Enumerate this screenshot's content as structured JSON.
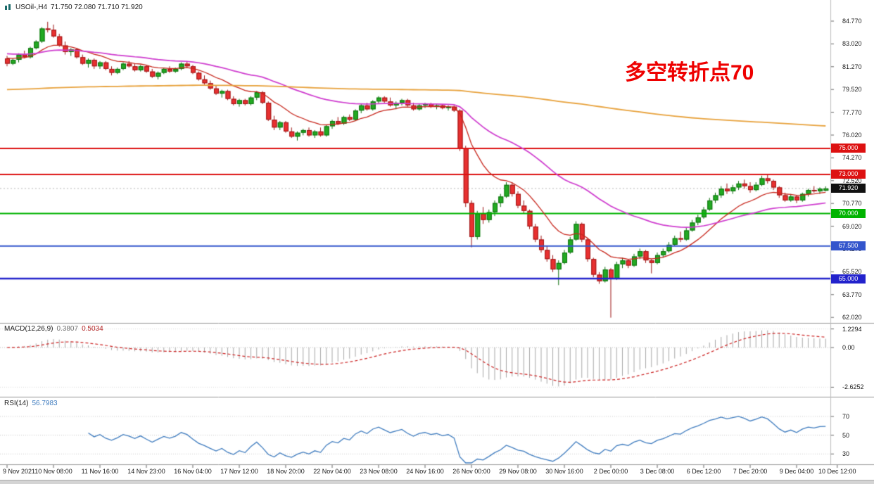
{
  "header": {
    "symbol_period": "USOil-,H4",
    "ohlc_text": "71.750 72.080 71.710 71.920"
  },
  "main_chart": {
    "annotation": "多空转折点70",
    "annotation_color": "#ee0000",
    "price_axis_labels": [
      "84.770",
      "83.020",
      "81.270",
      "79.520",
      "77.770",
      "76.020",
      "74.270",
      "72.520",
      "70.770",
      "69.020",
      "67.270",
      "65.520",
      "63.770",
      "62.020"
    ],
    "levels": [
      {
        "label": "75.000",
        "value": 75.0,
        "color": "#dd1111",
        "width": 2
      },
      {
        "label": "73.000",
        "value": 73.0,
        "color": "#dd1111",
        "width": 2
      },
      {
        "label": "70.000",
        "value": 70.0,
        "color": "#00b300",
        "width": 2
      },
      {
        "label": "67.500",
        "value": 67.5,
        "color": "#3355cc",
        "width": 2
      },
      {
        "label": "65.000",
        "value": 65.0,
        "color": "#2222cc",
        "width": 2.5
      }
    ],
    "current_price": {
      "label": "71.920",
      "value": 71.92,
      "color": "#111111"
    }
  },
  "macd": {
    "name": "MACD(12,26,9)",
    "main_value": "0.3807",
    "signal_value": "0.5034",
    "axis_labels": [
      "1.2294",
      "0.00",
      "-2.6252"
    ],
    "fast": 12,
    "slow": 26,
    "signal": 9
  },
  "rsi": {
    "name": "RSI(14)",
    "value": "56.7983",
    "period": 14,
    "axis_labels": [
      "70",
      "50",
      "30"
    ]
  },
  "time_axis": {
    "labels": [
      {
        "label": "9 Nov 2021",
        "bar": 0
      },
      {
        "label": "10 Nov 08:00",
        "bar": 8
      },
      {
        "label": "11 Nov 16:00",
        "bar": 16
      },
      {
        "label": "14 Nov 23:00",
        "bar": 24
      },
      {
        "label": "16 Nov 04:00",
        "bar": 32
      },
      {
        "label": "17 Nov 12:00",
        "bar": 40
      },
      {
        "label": "18 Nov 20:00",
        "bar": 48
      },
      {
        "label": "22 Nov 04:00",
        "bar": 56
      },
      {
        "label": "23 Nov 08:00",
        "bar": 64
      },
      {
        "label": "24 Nov 16:00",
        "bar": 72
      },
      {
        "label": "26 Nov 00:00",
        "bar": 80
      },
      {
        "label": "29 Nov 08:00",
        "bar": 88
      },
      {
        "label": "30 Nov 16:00",
        "bar": 96
      },
      {
        "label": "2 Dec 00:00",
        "bar": 104
      },
      {
        "label": "3 Dec 08:00",
        "bar": 112
      },
      {
        "label": "6 Dec 12:00",
        "bar": 120
      },
      {
        "label": "7 Dec 20:00",
        "bar": 128
      },
      {
        "label": "9 Dec 04:00",
        "bar": 136
      },
      {
        "label": "10 Dec 12:00",
        "bar": 143
      }
    ]
  },
  "chart_data": {
    "type": "candlestick",
    "title": "USOil-,H4",
    "symbol": "USOil",
    "timeframe": "H4",
    "ohlc_current": {
      "open": 71.75,
      "high": 72.08,
      "low": 71.71,
      "close": 71.92
    },
    "price_range": [
      62.02,
      84.77
    ],
    "colors": {
      "bull": "#22aa22",
      "bull_border": "#0c6e0c",
      "bear": "#e83030",
      "bear_border": "#9c1515",
      "macd_hist": "#a8a8a8",
      "macd_signal": "#cc2222",
      "rsi_line": "#3f7cbf",
      "bid_line": "#b5b5b5"
    },
    "moving_averages": [
      {
        "name": "ma-fast",
        "period": 12,
        "seed": 82.0,
        "color": "#c8281e",
        "width": 1.3
      },
      {
        "name": "ma-medium",
        "period": 40,
        "seed": 82.3,
        "color": "#cf3ccf",
        "width": 1.7
      },
      {
        "name": "ma-slow",
        "period": 400,
        "seed": 79.5,
        "color": "#e8a23c",
        "width": 1.8
      }
    ],
    "candles": [
      [
        81.9,
        82.1,
        81.3,
        81.5
      ],
      [
        81.5,
        81.9,
        81.4,
        81.8
      ],
      [
        81.8,
        82.3,
        81.6,
        82.2
      ],
      [
        82.2,
        82.5,
        81.9,
        82.0
      ],
      [
        82.0,
        82.8,
        81.9,
        82.7
      ],
      [
        82.7,
        83.3,
        82.6,
        83.2
      ],
      [
        83.2,
        84.3,
        83.1,
        84.2
      ],
      [
        84.2,
        84.72,
        83.9,
        84.1
      ],
      [
        84.1,
        84.5,
        83.5,
        83.6
      ],
      [
        83.6,
        83.8,
        82.8,
        82.9
      ],
      [
        82.9,
        83.2,
        82.2,
        82.4
      ],
      [
        82.4,
        82.7,
        82.1,
        82.6
      ],
      [
        82.6,
        82.7,
        81.9,
        82.0
      ],
      [
        82.0,
        82.2,
        81.4,
        81.5
      ],
      [
        81.5,
        81.9,
        81.2,
        81.8
      ],
      [
        81.8,
        81.9,
        81.1,
        81.3
      ],
      [
        81.3,
        81.7,
        81.1,
        81.6
      ],
      [
        81.6,
        81.7,
        81.0,
        81.1
      ],
      [
        81.1,
        81.3,
        80.6,
        80.8
      ],
      [
        80.8,
        81.2,
        80.7,
        81.1
      ],
      [
        81.1,
        81.6,
        81.0,
        81.5
      ],
      [
        81.5,
        81.7,
        81.2,
        81.3
      ],
      [
        81.3,
        81.5,
        80.9,
        81.0
      ],
      [
        81.0,
        81.4,
        80.9,
        81.3
      ],
      [
        81.3,
        81.4,
        80.8,
        80.9
      ],
      [
        80.9,
        81.1,
        80.4,
        80.5
      ],
      [
        80.5,
        80.9,
        80.3,
        80.8
      ],
      [
        80.8,
        81.2,
        80.7,
        81.1
      ],
      [
        81.1,
        81.3,
        80.8,
        80.9
      ],
      [
        80.9,
        81.2,
        80.8,
        81.1
      ],
      [
        81.1,
        81.6,
        81.0,
        81.5
      ],
      [
        81.5,
        81.7,
        81.2,
        81.3
      ],
      [
        81.3,
        81.4,
        80.7,
        80.8
      ],
      [
        80.8,
        80.9,
        80.2,
        80.3
      ],
      [
        80.3,
        80.6,
        79.9,
        80.0
      ],
      [
        80.0,
        80.2,
        79.5,
        79.6
      ],
      [
        79.6,
        79.8,
        79.1,
        79.2
      ],
      [
        79.2,
        79.5,
        78.9,
        79.4
      ],
      [
        79.4,
        79.5,
        78.7,
        78.8
      ],
      [
        78.8,
        79.0,
        78.3,
        78.4
      ],
      [
        78.4,
        78.8,
        78.2,
        78.7
      ],
      [
        78.7,
        78.8,
        78.3,
        78.4
      ],
      [
        78.4,
        79.0,
        78.3,
        78.9
      ],
      [
        78.9,
        79.4,
        78.7,
        79.3
      ],
      [
        79.3,
        79.4,
        78.4,
        78.5
      ],
      [
        78.5,
        78.6,
        77.1,
        77.2
      ],
      [
        77.2,
        77.5,
        76.4,
        76.6
      ],
      [
        76.6,
        77.1,
        76.4,
        77.0
      ],
      [
        77.0,
        77.1,
        76.2,
        76.3
      ],
      [
        76.3,
        76.6,
        75.8,
        75.9
      ],
      [
        75.9,
        76.3,
        75.6,
        76.2
      ],
      [
        76.2,
        76.5,
        76.0,
        76.4
      ],
      [
        76.4,
        76.6,
        75.9,
        76.0
      ],
      [
        76.0,
        76.4,
        75.8,
        76.3
      ],
      [
        76.3,
        76.6,
        75.9,
        76.0
      ],
      [
        76.0,
        76.8,
        75.9,
        76.7
      ],
      [
        76.7,
        77.2,
        76.5,
        77.1
      ],
      [
        77.1,
        77.4,
        76.8,
        76.9
      ],
      [
        76.9,
        77.5,
        76.8,
        77.4
      ],
      [
        77.4,
        77.6,
        77.1,
        77.2
      ],
      [
        77.2,
        78.0,
        77.1,
        77.9
      ],
      [
        77.9,
        78.4,
        77.7,
        78.3
      ],
      [
        78.3,
        78.5,
        77.9,
        78.0
      ],
      [
        78.0,
        78.7,
        77.9,
        78.6
      ],
      [
        78.6,
        79.0,
        78.4,
        78.9
      ],
      [
        78.9,
        79.0,
        78.5,
        78.6
      ],
      [
        78.6,
        78.9,
        78.2,
        78.3
      ],
      [
        78.3,
        78.6,
        78.0,
        78.5
      ],
      [
        78.5,
        78.8,
        78.3,
        78.7
      ],
      [
        78.7,
        78.8,
        78.2,
        78.3
      ],
      [
        78.3,
        78.5,
        77.9,
        78.0
      ],
      [
        78.0,
        78.4,
        77.9,
        78.3
      ],
      [
        78.3,
        78.5,
        78.1,
        78.4
      ],
      [
        78.4,
        78.5,
        78.1,
        78.2
      ],
      [
        78.2,
        78.4,
        78.0,
        78.3
      ],
      [
        78.3,
        78.4,
        78.0,
        78.1
      ],
      [
        78.1,
        78.3,
        77.9,
        78.2
      ],
      [
        78.2,
        78.3,
        77.8,
        77.9
      ],
      [
        77.9,
        78.0,
        74.8,
        75.0
      ],
      [
        75.0,
        75.2,
        70.5,
        70.8
      ],
      [
        70.8,
        71.0,
        67.4,
        68.2
      ],
      [
        68.2,
        70.2,
        68.0,
        70.0
      ],
      [
        70.0,
        70.5,
        69.2,
        69.5
      ],
      [
        69.5,
        70.3,
        69.3,
        70.1
      ],
      [
        70.1,
        71.0,
        69.8,
        70.8
      ],
      [
        70.8,
        71.5,
        70.5,
        71.3
      ],
      [
        71.3,
        72.4,
        71.2,
        72.2
      ],
      [
        72.2,
        72.4,
        71.3,
        71.5
      ],
      [
        71.5,
        71.7,
        70.4,
        70.6
      ],
      [
        70.6,
        71.0,
        70.0,
        70.2
      ],
      [
        70.2,
        70.3,
        68.8,
        69.0
      ],
      [
        69.0,
        69.2,
        67.8,
        68.0
      ],
      [
        68.0,
        68.3,
        67.0,
        67.2
      ],
      [
        67.2,
        67.5,
        66.3,
        66.5
      ],
      [
        66.5,
        66.8,
        65.5,
        65.7
      ],
      [
        65.7,
        66.4,
        64.5,
        66.2
      ],
      [
        66.2,
        67.2,
        66.1,
        67.0
      ],
      [
        67.0,
        68.2,
        66.9,
        68.0
      ],
      [
        68.0,
        69.4,
        67.9,
        69.2
      ],
      [
        69.2,
        69.3,
        67.8,
        68.0
      ],
      [
        68.0,
        68.1,
        66.3,
        66.5
      ],
      [
        66.5,
        66.6,
        65.1,
        65.3
      ],
      [
        65.3,
        65.5,
        64.6,
        64.8
      ],
      [
        64.8,
        65.9,
        64.7,
        65.7
      ],
      [
        65.7,
        65.8,
        62.0,
        65.0
      ],
      [
        65.0,
        66.3,
        64.9,
        66.1
      ],
      [
        66.1,
        66.6,
        65.8,
        66.4
      ],
      [
        66.4,
        66.5,
        65.8,
        66.0
      ],
      [
        66.0,
        66.9,
        65.9,
        66.7
      ],
      [
        66.7,
        67.3,
        66.5,
        67.1
      ],
      [
        67.1,
        67.2,
        66.2,
        66.4
      ],
      [
        66.4,
        66.5,
        65.4,
        66.2
      ],
      [
        66.2,
        67.0,
        66.1,
        66.8
      ],
      [
        66.8,
        67.3,
        66.6,
        67.1
      ],
      [
        67.1,
        67.8,
        67.0,
        67.6
      ],
      [
        67.6,
        68.3,
        67.5,
        68.1
      ],
      [
        68.1,
        68.6,
        67.8,
        68.0
      ],
      [
        68.0,
        68.9,
        67.9,
        68.7
      ],
      [
        68.7,
        69.5,
        68.6,
        69.3
      ],
      [
        69.3,
        69.9,
        69.1,
        69.7
      ],
      [
        69.7,
        70.5,
        69.6,
        70.3
      ],
      [
        70.3,
        71.2,
        70.2,
        71.0
      ],
      [
        71.0,
        71.6,
        70.8,
        71.4
      ],
      [
        71.4,
        72.1,
        71.2,
        71.9
      ],
      [
        71.9,
        72.3,
        71.5,
        71.7
      ],
      [
        71.7,
        72.2,
        71.5,
        72.0
      ],
      [
        72.0,
        72.5,
        71.8,
        72.3
      ],
      [
        72.3,
        72.6,
        71.9,
        72.1
      ],
      [
        72.1,
        72.4,
        71.6,
        71.8
      ],
      [
        71.8,
        72.4,
        71.7,
        72.2
      ],
      [
        72.2,
        72.9,
        72.1,
        72.7
      ],
      [
        72.7,
        73.0,
        72.3,
        72.5
      ],
      [
        72.5,
        72.6,
        71.8,
        72.0
      ],
      [
        72.0,
        72.1,
        71.2,
        71.4
      ],
      [
        71.4,
        71.6,
        70.9,
        71.0
      ],
      [
        71.0,
        71.5,
        70.9,
        71.3
      ],
      [
        71.3,
        71.4,
        70.8,
        71.0
      ],
      [
        71.0,
        71.6,
        70.9,
        71.5
      ],
      [
        71.5,
        71.9,
        71.3,
        71.8
      ],
      [
        71.8,
        72.1,
        71.6,
        71.7
      ],
      [
        71.7,
        72.0,
        71.5,
        71.9
      ],
      [
        71.75,
        72.08,
        71.71,
        71.92
      ]
    ]
  }
}
